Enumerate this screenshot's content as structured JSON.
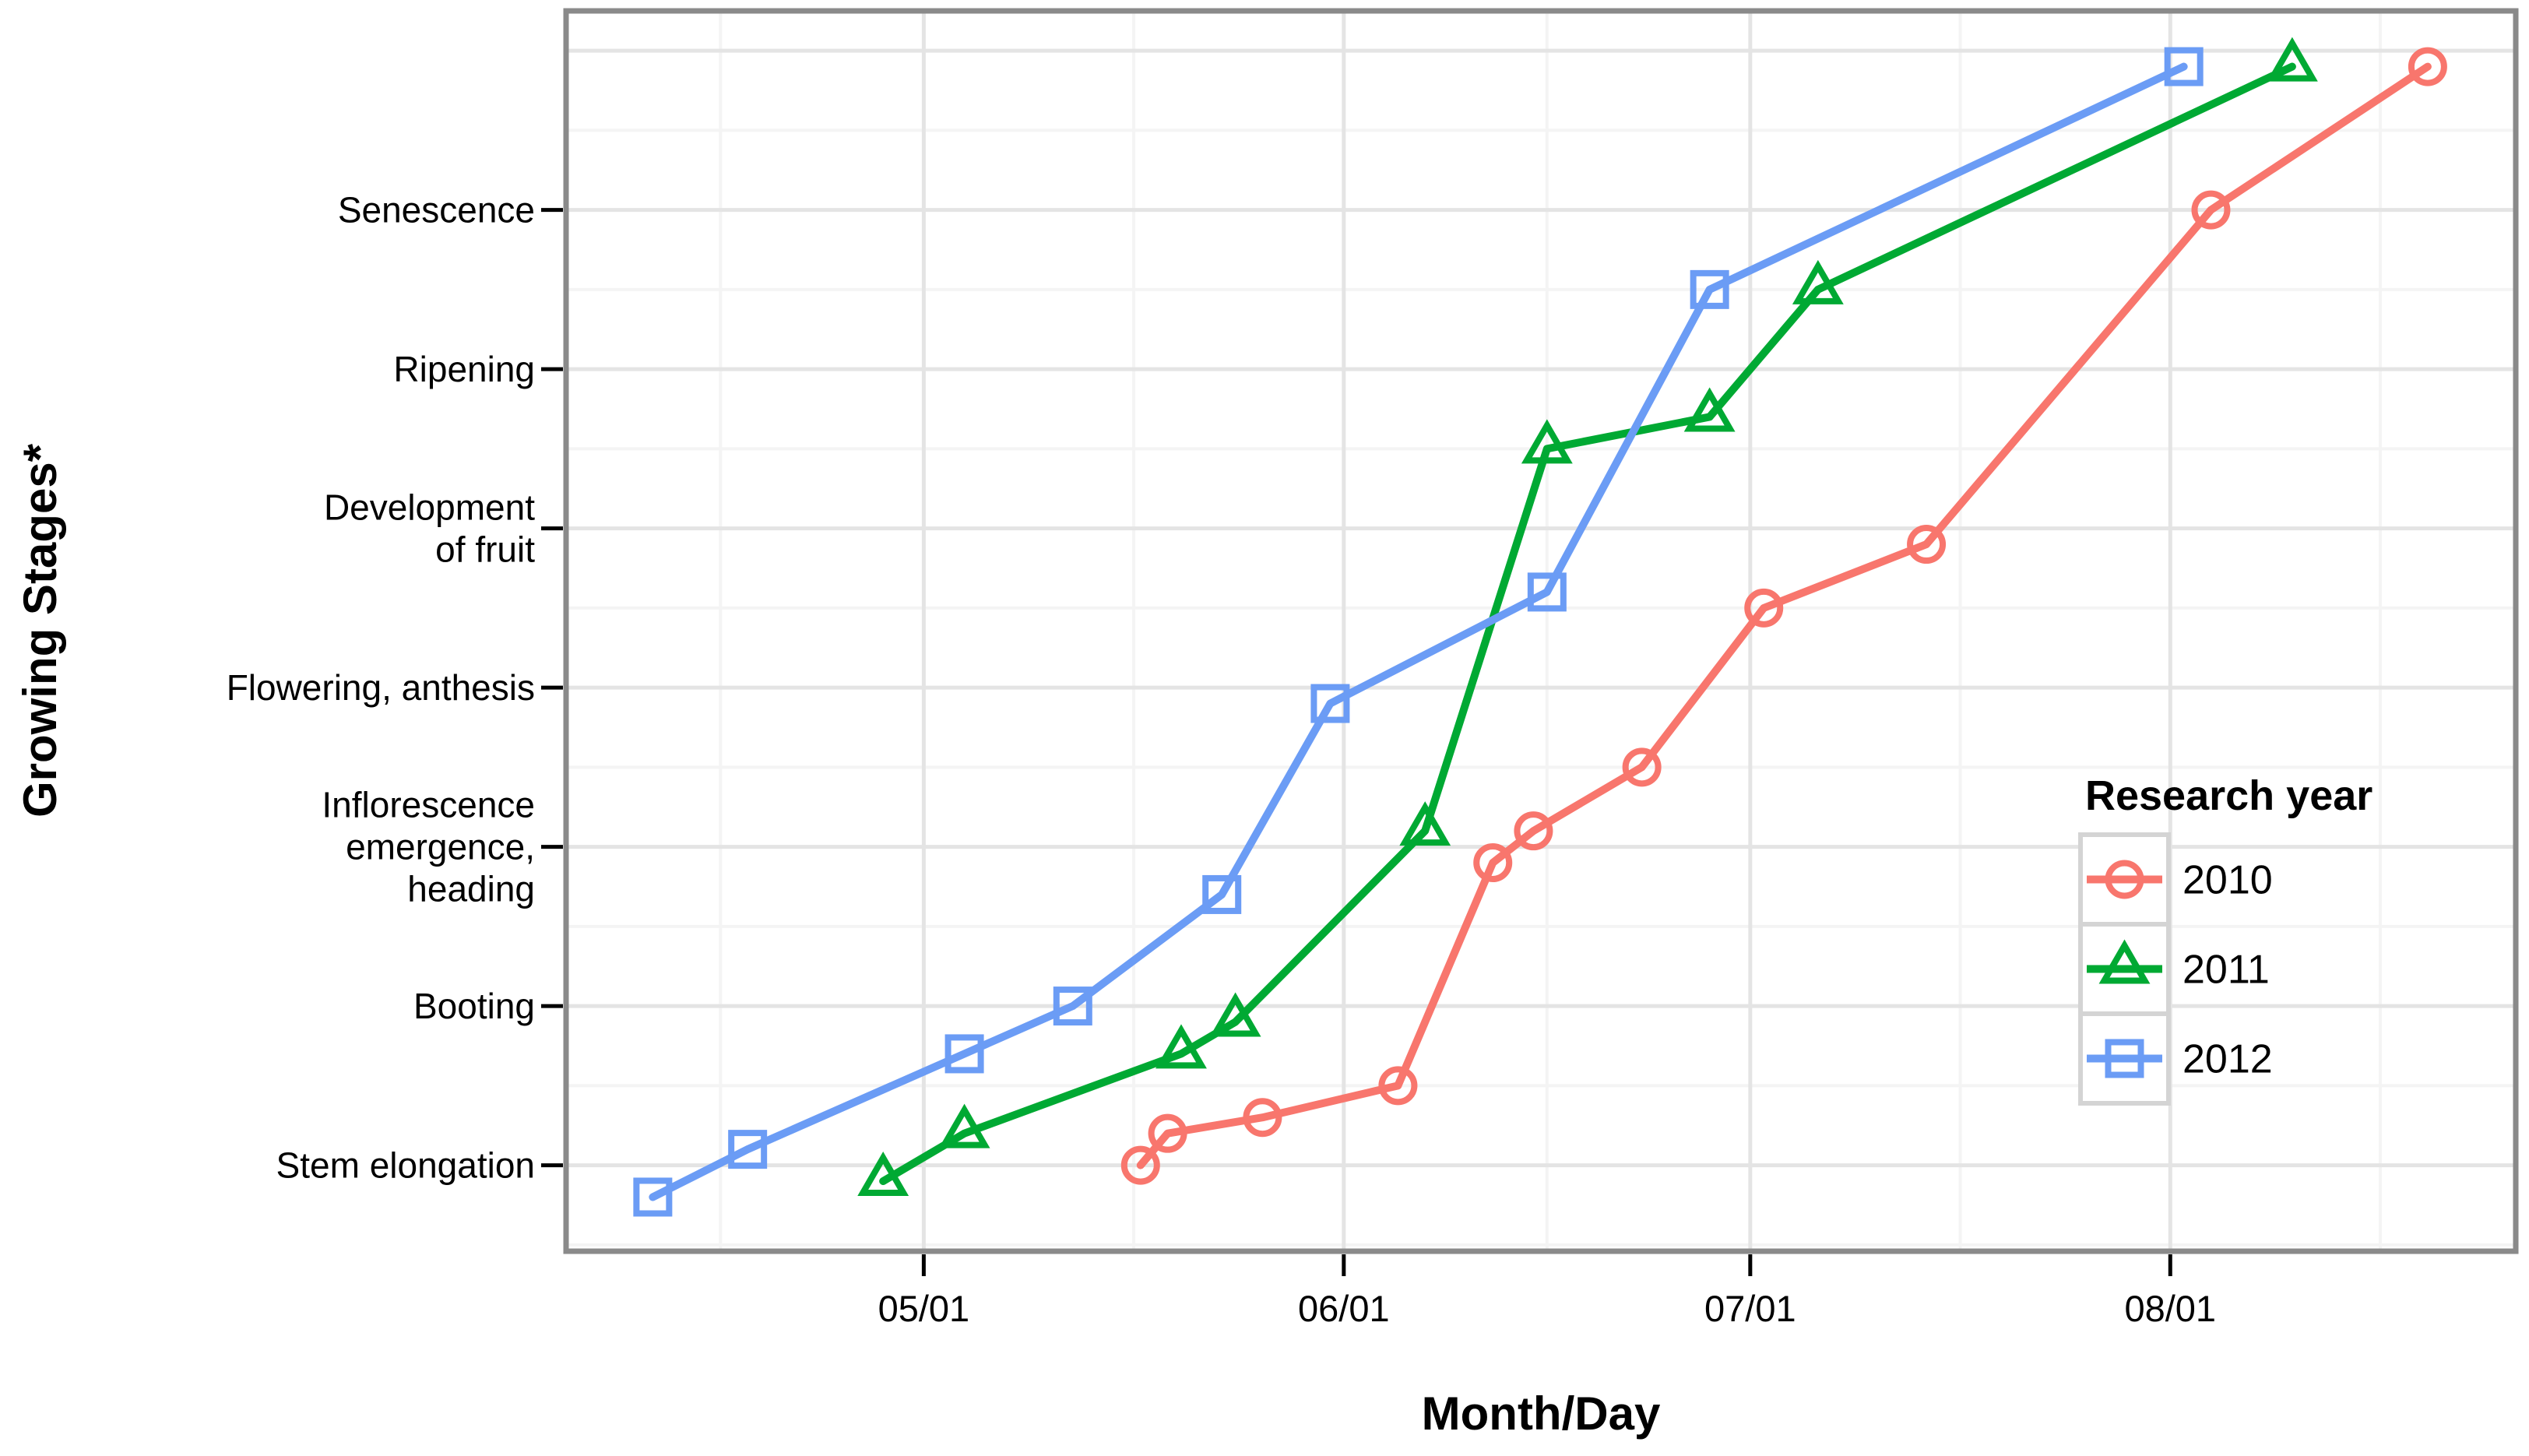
{
  "chart_data": {
    "type": "line",
    "title": "",
    "xlabel": "Month/Day",
    "ylabel": "Growing Stages*",
    "x_ticks": [
      "05/01",
      "06/01",
      "07/01",
      "08/01"
    ],
    "x_minor_days_from_may1": [
      -15,
      15.5,
      46,
      76.5,
      107.5
    ],
    "xlim_days_from_may1": [
      -26.4,
      117.5
    ],
    "ylim": [
      2.46,
      10.25
    ],
    "y_ticks": [
      {
        "value": 3,
        "label": "Stem elongation"
      },
      {
        "value": 4,
        "label": "Booting"
      },
      {
        "value": 5,
        "label": "Inflorescence\nemergence,\nheading"
      },
      {
        "value": 6,
        "label": "Flowering, anthesis"
      },
      {
        "value": 7,
        "label": "Development\nof fruit"
      },
      {
        "value": 8,
        "label": "Ripening"
      },
      {
        "value": 9,
        "label": "Senescence"
      }
    ],
    "y_major_gridlines": [
      3,
      4,
      5,
      6,
      7,
      8,
      9,
      10
    ],
    "y_minor_gridlines": [
      2.5,
      3.5,
      4.5,
      5.5,
      6.5,
      7.5,
      8.5,
      9.5
    ],
    "grid": true,
    "legend": {
      "title": "Research year",
      "position": "inside-right"
    },
    "series": [
      {
        "name": "2010",
        "color": "#F8766D",
        "marker": "circle",
        "points": [
          [
            "05/17",
            3.0
          ],
          [
            "05/19",
            3.2
          ],
          [
            "05/26",
            3.3
          ],
          [
            "06/05",
            3.5
          ],
          [
            "06/12",
            4.9
          ],
          [
            "06/15",
            5.1
          ],
          [
            "06/23",
            5.5
          ],
          [
            "07/02",
            6.5
          ],
          [
            "07/14",
            6.9
          ],
          [
            "08/04",
            9.0
          ],
          [
            "08/20",
            9.9
          ]
        ]
      },
      {
        "name": "2011",
        "color": "#00A933",
        "marker": "triangle",
        "points": [
          [
            "04/28",
            2.9
          ],
          [
            "05/04",
            3.2
          ],
          [
            "05/20",
            3.7
          ],
          [
            "05/24",
            3.9
          ],
          [
            "06/07",
            5.1
          ],
          [
            "06/16",
            7.5
          ],
          [
            "06/28",
            7.7
          ],
          [
            "07/06",
            8.5
          ],
          [
            "08/10",
            9.9
          ]
        ]
      },
      {
        "name": "2012",
        "color": "#6B9CF5",
        "marker": "square",
        "points": [
          [
            "04/11",
            2.8
          ],
          [
            "04/18",
            3.1
          ],
          [
            "05/04",
            3.7
          ],
          [
            "05/12",
            4.0
          ],
          [
            "05/23",
            4.7
          ],
          [
            "05/31",
            5.9
          ],
          [
            "06/16",
            6.6
          ],
          [
            "06/28",
            8.5
          ],
          [
            "08/02",
            9.9
          ]
        ]
      }
    ],
    "panel": {
      "background": "#FFFFFF",
      "border_color": "#8A8A8A",
      "major_grid_color": "#E4E4E4",
      "minor_grid_color": "#F4F4F4",
      "tick_color": "#000000",
      "legend_key_border": "#D4D4D4"
    }
  }
}
